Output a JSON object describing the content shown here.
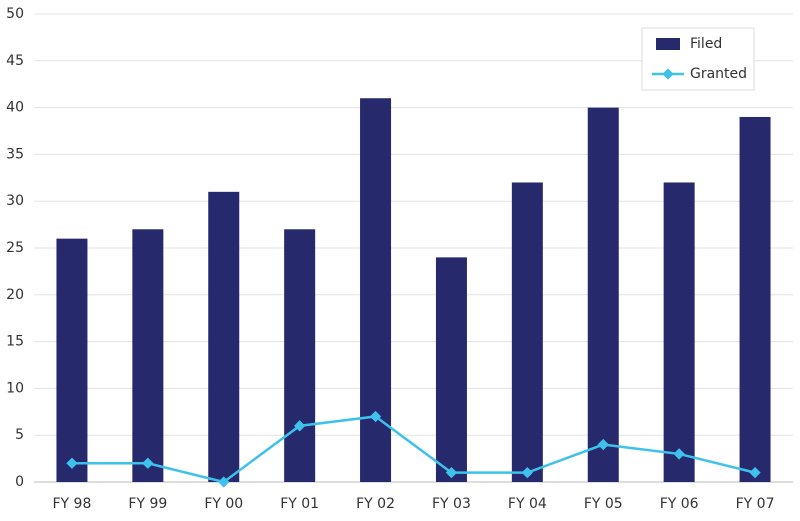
{
  "chart_data": {
    "type": "combo",
    "categories": [
      "FY 98",
      "FY 99",
      "FY 00",
      "FY 01",
      "FY 02",
      "FY 03",
      "FY 04",
      "FY 05",
      "FY 06",
      "FY 07"
    ],
    "series": [
      {
        "name": "Filed",
        "type": "bar",
        "color": "#27296d",
        "values": [
          26,
          27,
          31,
          27,
          41,
          24,
          32,
          40,
          32,
          39
        ]
      },
      {
        "name": "Granted",
        "type": "line",
        "color": "#3ec1ea",
        "values": [
          2,
          2,
          0,
          6,
          7,
          1,
          1,
          4,
          3,
          1
        ]
      }
    ],
    "ylim": [
      0,
      50
    ],
    "yticks": [
      0,
      5,
      10,
      15,
      20,
      25,
      30,
      35,
      40,
      45,
      50
    ],
    "grid": true,
    "legend": "top-right"
  }
}
